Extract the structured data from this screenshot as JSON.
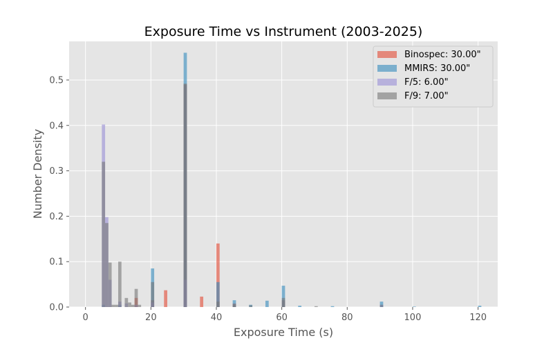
{
  "chart_data": {
    "type": "bar",
    "title": "Exposure Time vs Instrument (2003-2025)",
    "xlabel": "Exposure Time (s)",
    "ylabel": "Number Density",
    "xlim": [
      -5,
      126
    ],
    "ylim": [
      0,
      0.585
    ],
    "xticks": [
      0,
      20,
      40,
      60,
      80,
      100,
      120
    ],
    "yticks": [
      0.0,
      0.1,
      0.2,
      0.3,
      0.4,
      0.5
    ],
    "xtick_labels": [
      "0",
      "20",
      "40",
      "60",
      "80",
      "100",
      "120"
    ],
    "ytick_labels": [
      "0.0",
      "0.1",
      "0.2",
      "0.3",
      "0.4",
      "0.5"
    ],
    "bin_width": 1,
    "grid": true,
    "legend_position": "top-right",
    "series": [
      {
        "name": "Binospec:  30.00\"",
        "color": "#E24A33",
        "points": [
          [
            15,
            0.02
          ],
          [
            20,
            0.015
          ],
          [
            24,
            0.037
          ],
          [
            30,
            0.49
          ],
          [
            35,
            0.023
          ],
          [
            40,
            0.14
          ],
          [
            45,
            0.008
          ],
          [
            60,
            0.015
          ],
          [
            90,
            0.005
          ]
        ]
      },
      {
        "name": "MMIRS:  30.00\"",
        "color": "#348ABD",
        "points": [
          [
            5,
            0.005
          ],
          [
            10,
            0.005
          ],
          [
            20,
            0.085
          ],
          [
            30,
            0.56
          ],
          [
            40,
            0.055
          ],
          [
            45,
            0.015
          ],
          [
            50,
            0.005
          ],
          [
            55,
            0.014
          ],
          [
            60,
            0.047
          ],
          [
            65,
            0.003
          ],
          [
            75,
            0.002
          ],
          [
            90,
            0.012
          ],
          [
            100,
            0.001
          ],
          [
            120,
            0.003
          ]
        ]
      },
      {
        "name": "F/5:  6.00\"",
        "color": "#988ED5",
        "points": [
          [
            5,
            0.402
          ],
          [
            6,
            0.198
          ],
          [
            7,
            0.06
          ],
          [
            10,
            0.012
          ],
          [
            12,
            0.008
          ],
          [
            15,
            0.005
          ],
          [
            20,
            0.01
          ],
          [
            30,
            0.06
          ]
        ]
      },
      {
        "name": "F/9:  7.00\"",
        "color": "#777777",
        "points": [
          [
            5,
            0.32
          ],
          [
            6,
            0.185
          ],
          [
            7,
            0.098
          ],
          [
            8,
            0.005
          ],
          [
            9,
            0.005
          ],
          [
            10,
            0.1
          ],
          [
            12,
            0.02
          ],
          [
            13,
            0.01
          ],
          [
            14,
            0.005
          ],
          [
            15,
            0.04
          ],
          [
            16,
            0.005
          ],
          [
            20,
            0.055
          ],
          [
            30,
            0.492
          ],
          [
            40,
            0.012
          ],
          [
            45,
            0.006
          ],
          [
            50,
            0.004
          ],
          [
            60,
            0.02
          ],
          [
            70,
            0.002
          ]
        ]
      }
    ]
  }
}
